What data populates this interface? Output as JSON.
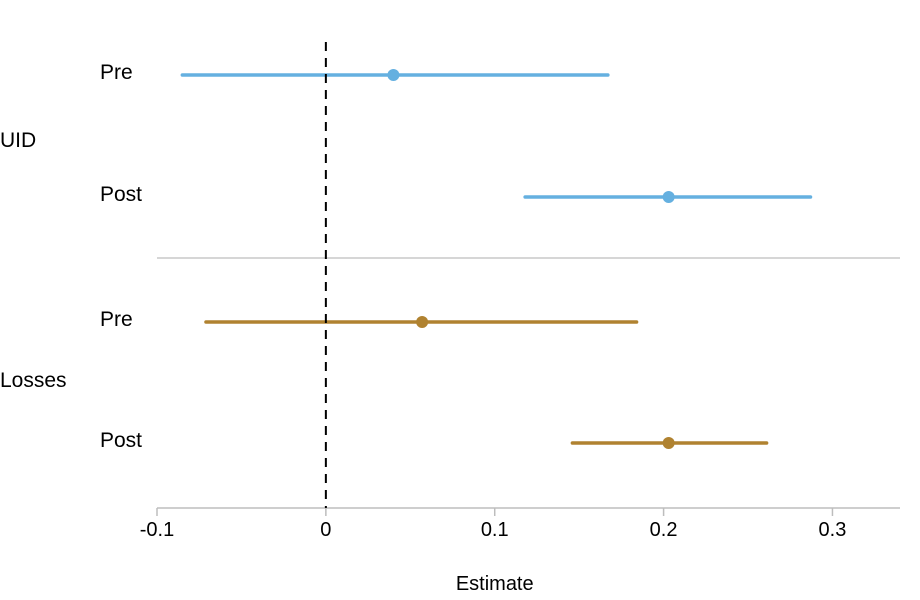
{
  "chart_data": {
    "type": "forest",
    "xlabel": "Estimate",
    "xlim": [
      -0.1,
      0.34
    ],
    "xticks": [
      -0.1,
      0,
      0.1,
      0.2,
      0.3
    ],
    "xtick_labels": [
      "-0.1",
      "0",
      "0.1",
      "0.2",
      "0.3"
    ],
    "reference_line": 0,
    "groups": [
      {
        "name": "UID",
        "color": "#65b0e0",
        "rows": [
          {
            "label": "Pre",
            "estimate": 0.04,
            "low": -0.085,
            "high": 0.167
          },
          {
            "label": "Post",
            "estimate": 0.203,
            "low": 0.118,
            "high": 0.287
          }
        ]
      },
      {
        "name": "Losses",
        "color": "#b08230",
        "rows": [
          {
            "label": "Pre",
            "estimate": 0.057,
            "low": -0.071,
            "high": 0.184
          },
          {
            "label": "Post",
            "estimate": 0.203,
            "low": 0.146,
            "high": 0.261
          }
        ]
      }
    ]
  }
}
